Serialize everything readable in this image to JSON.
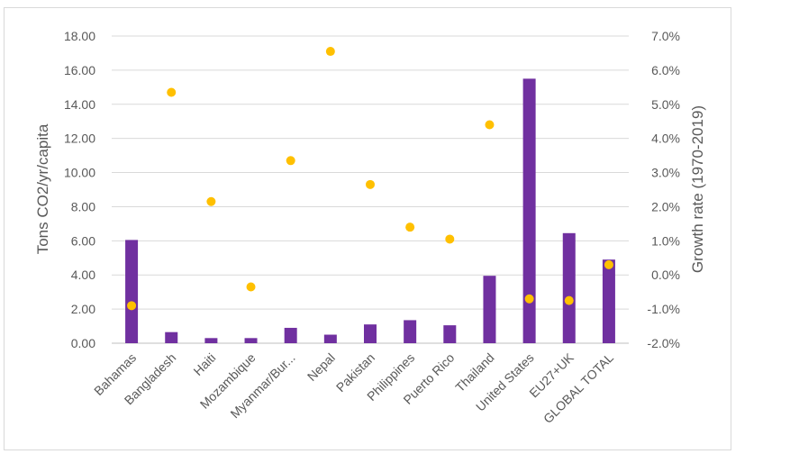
{
  "chart_data": {
    "type": "bar",
    "categories": [
      "Bahamas",
      "Bangladesh",
      "Haiti",
      "Mozambique",
      "Myanmar/Bur...",
      "Nepal",
      "Pakistan",
      "Philippines",
      "Puerto Rico",
      "Thailand",
      "United States",
      "EU27+UK",
      "GLOBAL TOTAL"
    ],
    "series": [
      {
        "type": "bar",
        "axis": "left",
        "color": "#7030a0",
        "values": [
          6.05,
          0.65,
          0.3,
          0.3,
          0.9,
          0.5,
          1.1,
          1.35,
          1.05,
          3.95,
          15.5,
          6.45,
          4.9
        ]
      },
      {
        "type": "scatter",
        "axis": "right",
        "color": "#ffc000",
        "values": [
          -0.9,
          5.35,
          2.15,
          -0.35,
          3.35,
          6.55,
          2.65,
          1.4,
          1.05,
          4.4,
          -0.7,
          -0.75,
          0.3
        ]
      }
    ],
    "ylabel": "Tons CO2/yr/capita",
    "y2label": "Growth rate (1970-2019)",
    "ylim": [
      0,
      18
    ],
    "y2lim": [
      -2.0,
      7.0
    ],
    "yticks": [
      "0.00",
      "2.00",
      "4.00",
      "6.00",
      "8.00",
      "10.00",
      "12.00",
      "14.00",
      "16.00",
      "18.00"
    ],
    "y2ticks": [
      "-2.0%",
      "-1.0%",
      "0.0%",
      "1.0%",
      "2.0%",
      "3.0%",
      "4.0%",
      "5.0%",
      "6.0%",
      "7.0%"
    ],
    "grid": true,
    "legend": "none"
  }
}
